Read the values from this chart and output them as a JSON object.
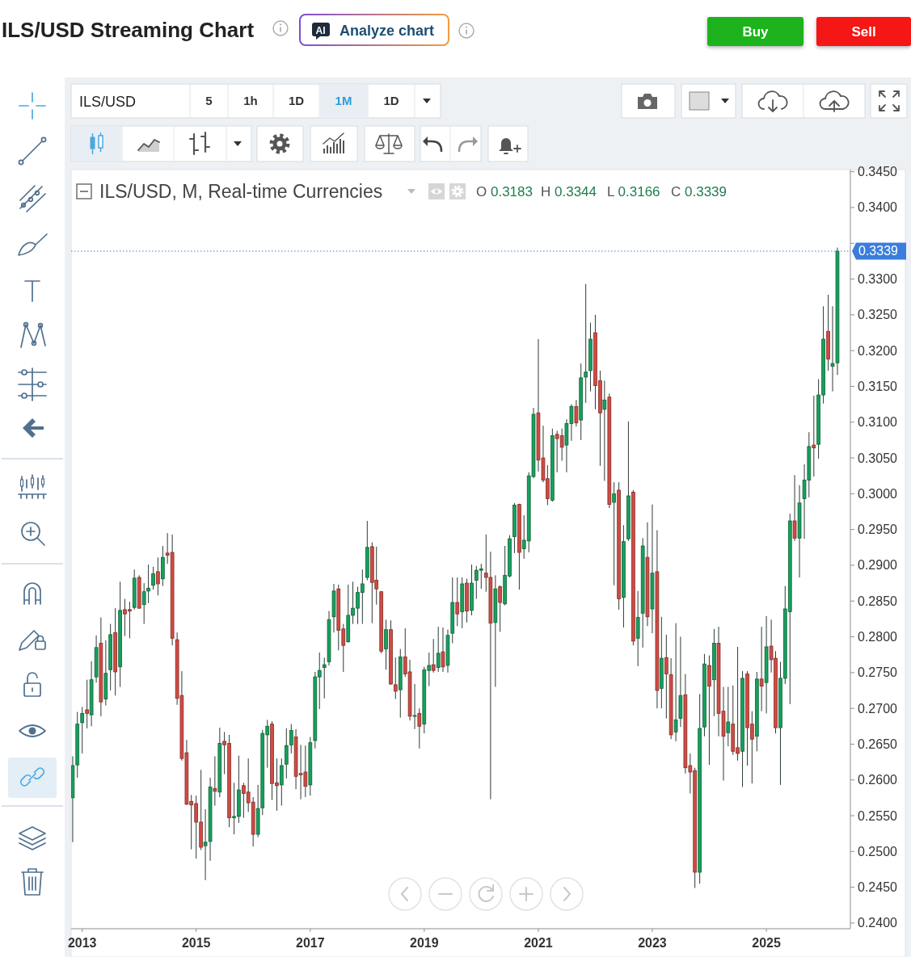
{
  "chart_data": {
    "type": "candlestick",
    "title": "ILS/USD Streaming Chart",
    "subtitle": "ILS/USD, M, Real-time Currencies",
    "x": [
      "2012-11",
      "2012-12",
      "2013-01",
      "2013-02",
      "2013-03",
      "2013-04",
      "2013-05",
      "2013-06",
      "2013-07",
      "2013-08",
      "2013-09",
      "2013-10",
      "2013-11",
      "2013-12",
      "2014-01",
      "2014-02",
      "2014-03",
      "2014-04",
      "2014-05",
      "2014-06",
      "2014-07",
      "2014-08",
      "2014-09",
      "2014-10",
      "2014-11",
      "2014-12",
      "2015-01",
      "2015-02",
      "2015-03",
      "2015-04",
      "2015-05",
      "2015-06",
      "2015-07",
      "2015-08",
      "2015-09",
      "2015-10",
      "2015-11",
      "2015-12",
      "2016-01",
      "2016-02",
      "2016-03",
      "2016-04",
      "2016-05",
      "2016-06",
      "2016-07",
      "2016-08",
      "2016-09",
      "2016-10",
      "2016-11",
      "2016-12",
      "2017-01",
      "2017-02",
      "2017-03",
      "2017-04",
      "2017-05",
      "2017-06",
      "2017-07",
      "2017-08",
      "2017-09",
      "2017-10",
      "2017-11",
      "2017-12",
      "2018-01",
      "2018-02",
      "2018-03",
      "2018-04",
      "2018-05",
      "2018-06",
      "2018-07",
      "2018-08",
      "2018-09",
      "2018-10",
      "2018-11",
      "2018-12",
      "2019-01",
      "2019-02",
      "2019-03",
      "2019-04",
      "2019-05",
      "2019-06",
      "2019-07",
      "2019-08",
      "2019-09",
      "2019-10",
      "2019-11",
      "2019-12",
      "2020-01",
      "2020-02",
      "2020-03",
      "2020-04",
      "2020-05",
      "2020-06",
      "2020-07",
      "2020-08",
      "2020-09",
      "2020-10",
      "2020-11",
      "2020-12",
      "2021-01",
      "2021-02",
      "2021-03",
      "2021-04",
      "2021-05",
      "2021-06",
      "2021-07",
      "2021-08",
      "2021-09",
      "2021-10",
      "2021-11",
      "2021-12",
      "2022-01",
      "2022-02",
      "2022-03",
      "2022-04",
      "2022-05",
      "2022-06",
      "2022-07",
      "2022-08",
      "2022-09",
      "2022-10",
      "2022-11",
      "2022-12",
      "2023-01",
      "2023-02",
      "2023-03",
      "2023-04",
      "2023-05",
      "2023-06",
      "2023-07",
      "2023-08",
      "2023-09",
      "2023-10",
      "2023-11",
      "2023-12",
      "2024-01",
      "2024-02",
      "2024-03",
      "2024-04",
      "2024-05",
      "2024-06",
      "2024-07",
      "2024-08",
      "2024-09",
      "2024-10",
      "2024-11",
      "2024-12",
      "2025-01",
      "2025-02",
      "2025-03",
      "2025-04",
      "2025-05",
      "2025-06",
      "2025-07",
      "2025-08",
      "2025-09",
      "2025-10",
      "2025-11",
      "2025-12",
      "2026-01",
      "2026-02",
      "2026-03",
      "2026-04"
    ],
    "ohlc": [
      [
        0.2575,
        0.2633,
        0.2513,
        0.262
      ],
      [
        0.2621,
        0.2695,
        0.2603,
        0.2678
      ],
      [
        0.268,
        0.2702,
        0.2637,
        0.2693
      ],
      [
        0.2698,
        0.274,
        0.2672,
        0.2693
      ],
      [
        0.2691,
        0.2766,
        0.2675,
        0.274
      ],
      [
        0.2744,
        0.2802,
        0.2736,
        0.2785
      ],
      [
        0.2791,
        0.2827,
        0.2689,
        0.2709
      ],
      [
        0.2713,
        0.2795,
        0.2704,
        0.2749
      ],
      [
        0.2754,
        0.2818,
        0.2725,
        0.2803
      ],
      [
        0.2806,
        0.284,
        0.2718,
        0.2751
      ],
      [
        0.2758,
        0.2877,
        0.273,
        0.2837
      ],
      [
        0.2838,
        0.2853,
        0.2801,
        0.2832
      ],
      [
        0.2838,
        0.2849,
        0.2798,
        0.2836
      ],
      [
        0.2841,
        0.2894,
        0.2838,
        0.2882
      ],
      [
        0.2883,
        0.2886,
        0.2839,
        0.284
      ],
      [
        0.2845,
        0.2875,
        0.2818,
        0.2863
      ],
      [
        0.2864,
        0.2901,
        0.2847,
        0.2868
      ],
      [
        0.2872,
        0.2898,
        0.2866,
        0.2888
      ],
      [
        0.2891,
        0.2911,
        0.2858,
        0.2874
      ],
      [
        0.2881,
        0.2927,
        0.2871,
        0.2911
      ],
      [
        0.2917,
        0.2945,
        0.2902,
        0.2914
      ],
      [
        0.2918,
        0.2943,
        0.2788,
        0.2798
      ],
      [
        0.2796,
        0.2806,
        0.2705,
        0.2714
      ],
      [
        0.2718,
        0.2752,
        0.2627,
        0.263
      ],
      [
        0.2638,
        0.2656,
        0.2565,
        0.2566
      ],
      [
        0.257,
        0.2579,
        0.2503,
        0.2565
      ],
      [
        0.2567,
        0.2578,
        0.249,
        0.2541
      ],
      [
        0.2541,
        0.2614,
        0.2502,
        0.2506
      ],
      [
        0.2508,
        0.2559,
        0.246,
        0.2513
      ],
      [
        0.2514,
        0.2603,
        0.2487,
        0.259
      ],
      [
        0.2588,
        0.2633,
        0.2564,
        0.2584
      ],
      [
        0.2583,
        0.2673,
        0.2576,
        0.2651
      ],
      [
        0.2654,
        0.2667,
        0.2608,
        0.2649
      ],
      [
        0.2651,
        0.2663,
        0.2534,
        0.2547
      ],
      [
        0.2547,
        0.2596,
        0.2524,
        0.2549
      ],
      [
        0.2549,
        0.2634,
        0.254,
        0.2586
      ],
      [
        0.2592,
        0.2596,
        0.2547,
        0.2581
      ],
      [
        0.2583,
        0.263,
        0.2555,
        0.2568
      ],
      [
        0.2569,
        0.2576,
        0.2507,
        0.2524
      ],
      [
        0.2524,
        0.2593,
        0.252,
        0.256
      ],
      [
        0.2561,
        0.267,
        0.2551,
        0.2665
      ],
      [
        0.2663,
        0.2684,
        0.2617,
        0.2675
      ],
      [
        0.2678,
        0.2682,
        0.2572,
        0.2595
      ],
      [
        0.2596,
        0.263,
        0.2557,
        0.2592
      ],
      [
        0.2593,
        0.263,
        0.2564,
        0.262
      ],
      [
        0.2622,
        0.2672,
        0.2602,
        0.2648
      ],
      [
        0.2649,
        0.2678,
        0.2637,
        0.2669
      ],
      [
        0.266,
        0.2671,
        0.2587,
        0.2605
      ],
      [
        0.2609,
        0.2649,
        0.2573,
        0.2607
      ],
      [
        0.2611,
        0.2648,
        0.2576,
        0.2591
      ],
      [
        0.2593,
        0.266,
        0.2578,
        0.2652
      ],
      [
        0.2655,
        0.2751,
        0.2644,
        0.2744
      ],
      [
        0.2744,
        0.2778,
        0.2699,
        0.2753
      ],
      [
        0.2757,
        0.2771,
        0.2714,
        0.2761
      ],
      [
        0.2765,
        0.2836,
        0.276,
        0.2824
      ],
      [
        0.2828,
        0.2874,
        0.2806,
        0.2864
      ],
      [
        0.2867,
        0.2873,
        0.2781,
        0.2809
      ],
      [
        0.2811,
        0.2818,
        0.2751,
        0.2788
      ],
      [
        0.2793,
        0.2873,
        0.2792,
        0.283
      ],
      [
        0.283,
        0.2877,
        0.2818,
        0.284
      ],
      [
        0.284,
        0.287,
        0.2818,
        0.2862
      ],
      [
        0.2862,
        0.2894,
        0.2818,
        0.2874
      ],
      [
        0.2883,
        0.2962,
        0.2879,
        0.2925
      ],
      [
        0.2926,
        0.2932,
        0.2819,
        0.2876
      ],
      [
        0.2879,
        0.2926,
        0.2845,
        0.2867
      ],
      [
        0.2863,
        0.2864,
        0.2777,
        0.278
      ],
      [
        0.2783,
        0.2824,
        0.2754,
        0.281
      ],
      [
        0.281,
        0.2823,
        0.2733,
        0.2734
      ],
      [
        0.2733,
        0.2771,
        0.2713,
        0.2724
      ],
      [
        0.2726,
        0.2783,
        0.2687,
        0.2772
      ],
      [
        0.2772,
        0.2812,
        0.2744,
        0.2748
      ],
      [
        0.2751,
        0.2768,
        0.2683,
        0.2689
      ],
      [
        0.2689,
        0.2734,
        0.2671,
        0.269
      ],
      [
        0.2693,
        0.27,
        0.2644,
        0.2675
      ],
      [
        0.2678,
        0.2758,
        0.2665,
        0.2754
      ],
      [
        0.2753,
        0.2778,
        0.2731,
        0.276
      ],
      [
        0.2761,
        0.2797,
        0.275,
        0.2753
      ],
      [
        0.2757,
        0.2814,
        0.2751,
        0.2777
      ],
      [
        0.2779,
        0.2813,
        0.2751,
        0.2758
      ],
      [
        0.276,
        0.281,
        0.275,
        0.2802
      ],
      [
        0.2805,
        0.2883,
        0.2791,
        0.2848
      ],
      [
        0.2848,
        0.2883,
        0.2815,
        0.2832
      ],
      [
        0.2835,
        0.2883,
        0.2812,
        0.2874
      ],
      [
        0.2875,
        0.2881,
        0.282,
        0.2836
      ],
      [
        0.2837,
        0.2901,
        0.283,
        0.2875
      ],
      [
        0.2879,
        0.2899,
        0.2853,
        0.2893
      ],
      [
        0.2893,
        0.2902,
        0.2867,
        0.2895
      ],
      [
        0.2889,
        0.2943,
        0.2863,
        0.2883
      ],
      [
        0.2883,
        0.2919,
        0.2573,
        0.2819
      ],
      [
        0.282,
        0.2886,
        0.273,
        0.2867
      ],
      [
        0.287,
        0.2872,
        0.2807,
        0.2848
      ],
      [
        0.2846,
        0.2927,
        0.2844,
        0.2886
      ],
      [
        0.2885,
        0.2942,
        0.2883,
        0.2937
      ],
      [
        0.294,
        0.2987,
        0.2917,
        0.2984
      ],
      [
        0.2985,
        0.2986,
        0.2866,
        0.2918
      ],
      [
        0.2923,
        0.297,
        0.2909,
        0.2935
      ],
      [
        0.2934,
        0.303,
        0.2918,
        0.3025
      ],
      [
        0.3024,
        0.312,
        0.3022,
        0.3111
      ],
      [
        0.3113,
        0.3216,
        0.3031,
        0.3047
      ],
      [
        0.305,
        0.3095,
        0.3016,
        0.3019
      ],
      [
        0.3021,
        0.304,
        0.2984,
        0.2993
      ],
      [
        0.2991,
        0.3091,
        0.2989,
        0.3081
      ],
      [
        0.3083,
        0.3088,
        0.303,
        0.3077
      ],
      [
        0.3081,
        0.3091,
        0.3046,
        0.3065
      ],
      [
        0.3068,
        0.3104,
        0.303,
        0.3098
      ],
      [
        0.3098,
        0.3125,
        0.3074,
        0.3122
      ],
      [
        0.3122,
        0.3131,
        0.3094,
        0.3099
      ],
      [
        0.3103,
        0.3182,
        0.3075,
        0.3162
      ],
      [
        0.3163,
        0.3293,
        0.3127,
        0.317
      ],
      [
        0.3172,
        0.3239,
        0.3143,
        0.3216
      ],
      [
        0.3225,
        0.325,
        0.3118,
        0.3151
      ],
      [
        0.3158,
        0.3172,
        0.3039,
        0.3113
      ],
      [
        0.3118,
        0.3158,
        0.3018,
        0.3131
      ],
      [
        0.3135,
        0.314,
        0.298,
        0.2985
      ],
      [
        0.2988,
        0.3016,
        0.2872,
        0.3
      ],
      [
        0.3005,
        0.3016,
        0.2838,
        0.2853
      ],
      [
        0.2855,
        0.2956,
        0.2813,
        0.2933
      ],
      [
        0.2937,
        0.3101,
        0.2934,
        0.2997
      ],
      [
        0.3002,
        0.3005,
        0.2788,
        0.2794
      ],
      [
        0.2798,
        0.2864,
        0.2759,
        0.2827
      ],
      [
        0.2833,
        0.2938,
        0.2785,
        0.2927
      ],
      [
        0.2911,
        0.296,
        0.2815,
        0.2828
      ],
      [
        0.2839,
        0.2985,
        0.2805,
        0.2889
      ],
      [
        0.2891,
        0.2949,
        0.27,
        0.2725
      ],
      [
        0.2728,
        0.2828,
        0.27,
        0.277
      ],
      [
        0.2771,
        0.2803,
        0.2686,
        0.2748
      ],
      [
        0.2747,
        0.277,
        0.2657,
        0.2663
      ],
      [
        0.2667,
        0.2819,
        0.2654,
        0.2684
      ],
      [
        0.2686,
        0.28,
        0.2674,
        0.2718
      ],
      [
        0.2719,
        0.2748,
        0.2609,
        0.2617
      ],
      [
        0.262,
        0.2637,
        0.2581,
        0.2611
      ],
      [
        0.2613,
        0.2617,
        0.2449,
        0.2471
      ],
      [
        0.2471,
        0.272,
        0.2455,
        0.2672
      ],
      [
        0.2674,
        0.2776,
        0.2661,
        0.2762
      ],
      [
        0.276,
        0.2774,
        0.2621,
        0.2731
      ],
      [
        0.274,
        0.2811,
        0.2689,
        0.2791
      ],
      [
        0.2791,
        0.2814,
        0.2661,
        0.2693
      ],
      [
        0.2696,
        0.273,
        0.2599,
        0.2661
      ],
      [
        0.2666,
        0.273,
        0.2647,
        0.2681
      ],
      [
        0.2678,
        0.2732,
        0.2635,
        0.264
      ],
      [
        0.2645,
        0.2786,
        0.2627,
        0.2637
      ],
      [
        0.264,
        0.2752,
        0.259,
        0.2742
      ],
      [
        0.2748,
        0.2752,
        0.262,
        0.2673
      ],
      [
        0.2678,
        0.2696,
        0.2595,
        0.2657
      ],
      [
        0.2661,
        0.2751,
        0.264,
        0.2741
      ],
      [
        0.2741,
        0.2814,
        0.2696,
        0.2731
      ],
      [
        0.2736,
        0.2829,
        0.2693,
        0.2786
      ],
      [
        0.2787,
        0.2824,
        0.275,
        0.2768
      ],
      [
        0.277,
        0.278,
        0.2665,
        0.2673
      ],
      [
        0.2673,
        0.2765,
        0.2593,
        0.2742
      ],
      [
        0.2742,
        0.2871,
        0.2734,
        0.2839
      ],
      [
        0.2835,
        0.2972,
        0.2706,
        0.2962
      ],
      [
        0.2962,
        0.3026,
        0.2934,
        0.2938
      ],
      [
        0.2938,
        0.3012,
        0.2883,
        0.2987
      ],
      [
        0.2993,
        0.3041,
        0.2937,
        0.3019
      ],
      [
        0.3019,
        0.3086,
        0.2995,
        0.3066
      ],
      [
        0.3068,
        0.3137,
        0.3024,
        0.3064
      ],
      [
        0.3069,
        0.316,
        0.3049,
        0.3138
      ],
      [
        0.3138,
        0.3262,
        0.3126,
        0.3216
      ],
      [
        0.3227,
        0.3278,
        0.3172,
        0.3188
      ],
      [
        0.3178,
        0.3262,
        0.3143,
        0.3182
      ],
      [
        0.3183,
        0.3344,
        0.3166,
        0.3339
      ]
    ],
    "colors": [
      "#17a05d",
      "#17a05d",
      "#17a05d",
      "#d14b43",
      "#17a05d",
      "#17a05d",
      "#d14b43",
      "#17a05d",
      "#17a05d",
      "#d14b43",
      "#17a05d",
      "#d14b43",
      "#d14b43",
      "#17a05d",
      "#d14b43",
      "#17a05d",
      "#17a05d",
      "#17a05d",
      "#d14b43",
      "#17a05d",
      "#d14b43",
      "#d14b43",
      "#d14b43",
      "#d14b43",
      "#d14b43",
      "#d14b43",
      "#d14b43",
      "#d14b43",
      "#17a05d",
      "#17a05d",
      "#d14b43",
      "#17a05d",
      "#d14b43",
      "#d14b43",
      "#17a05d",
      "#17a05d",
      "#d14b43",
      "#d14b43",
      "#d14b43",
      "#17a05d",
      "#17a05d",
      "#17a05d",
      "#d14b43",
      "#d14b43",
      "#17a05d",
      "#17a05d",
      "#17a05d",
      "#d14b43",
      "#d14b43",
      "#d14b43",
      "#17a05d",
      "#17a05d",
      "#17a05d",
      "#17a05d",
      "#17a05d",
      "#17a05d",
      "#d14b43",
      "#d14b43",
      "#17a05d",
      "#17a05d",
      "#17a05d",
      "#17a05d",
      "#17a05d",
      "#d14b43",
      "#d14b43",
      "#d14b43",
      "#17a05d",
      "#d14b43",
      "#d14b43",
      "#17a05d",
      "#d14b43",
      "#d14b43",
      "#17a05d",
      "#d14b43",
      "#17a05d",
      "#17a05d",
      "#d14b43",
      "#17a05d",
      "#d14b43",
      "#17a05d",
      "#17a05d",
      "#d14b43",
      "#17a05d",
      "#d14b43",
      "#17a05d",
      "#17a05d",
      "#17a05d",
      "#d14b43",
      "#d14b43",
      "#17a05d",
      "#d14b43",
      "#17a05d",
      "#17a05d",
      "#17a05d",
      "#d14b43",
      "#17a05d",
      "#17a05d",
      "#17a05d",
      "#d14b43",
      "#d14b43",
      "#d14b43",
      "#17a05d",
      "#d14b43",
      "#d14b43",
      "#17a05d",
      "#17a05d",
      "#d14b43",
      "#17a05d",
      "#17a05d",
      "#17a05d",
      "#d14b43",
      "#d14b43",
      "#17a05d",
      "#d14b43",
      "#17a05d",
      "#d14b43",
      "#17a05d",
      "#17a05d",
      "#d14b43",
      "#17a05d",
      "#17a05d",
      "#d14b43",
      "#17a05d",
      "#d14b43",
      "#17a05d",
      "#d14b43",
      "#d14b43",
      "#17a05d",
      "#17a05d",
      "#d14b43",
      "#d14b43",
      "#d14b43",
      "#17a05d",
      "#17a05d",
      "#d14b43",
      "#17a05d",
      "#d14b43",
      "#d14b43",
      "#17a05d",
      "#d14b43",
      "#d14b43",
      "#17a05d",
      "#d14b43",
      "#d14b43",
      "#17a05d",
      "#d14b43",
      "#17a05d",
      "#d14b43",
      "#d14b43",
      "#17a05d",
      "#17a05d",
      "#17a05d",
      "#d14b43",
      "#17a05d",
      "#17a05d",
      "#17a05d",
      "#d14b43",
      "#17a05d",
      "#17a05d",
      "#d14b43",
      "#17a05d",
      "#17a05d"
    ],
    "xlim": [
      "2012-10-22",
      "2026-06-23"
    ],
    "xticks": [
      "2013",
      "2015",
      "2017",
      "2019",
      "2021",
      "2023",
      "2025"
    ],
    "ylim": [
      0.2392,
      0.3453
    ],
    "yticks": [
      {
        "value": 0.24,
        "label": "0.2400"
      },
      {
        "value": 0.245,
        "label": "0.2450"
      },
      {
        "value": 0.25,
        "label": "0.2500"
      },
      {
        "value": 0.255,
        "label": "0.2550"
      },
      {
        "value": 0.26,
        "label": "0.2600"
      },
      {
        "value": 0.265,
        "label": "0.2650"
      },
      {
        "value": 0.27,
        "label": "0.2700"
      },
      {
        "value": 0.275,
        "label": "0.2750"
      },
      {
        "value": 0.28,
        "label": "0.2800"
      },
      {
        "value": 0.285,
        "label": "0.2850"
      },
      {
        "value": 0.29,
        "label": "0.2900"
      },
      {
        "value": 0.295,
        "label": "0.2950"
      },
      {
        "value": 0.3,
        "label": "0.3000"
      },
      {
        "value": 0.305,
        "label": "0.3050"
      },
      {
        "value": 0.31,
        "label": "0.3100"
      },
      {
        "value": 0.315,
        "label": "0.3150"
      },
      {
        "value": 0.32,
        "label": "0.3200"
      },
      {
        "value": 0.325,
        "label": "0.3250"
      },
      {
        "value": 0.33,
        "label": "0.3300"
      },
      {
        "value": 0.335,
        "label": null
      },
      {
        "value": 0.34,
        "label": "0.3400"
      },
      {
        "value": 0.345,
        "label": "0.3450"
      }
    ],
    "ref_lines": [
      {
        "axis": "y",
        "value": 0.3339,
        "label": "0.3339",
        "color": "#3a7ddb",
        "line_style": "dotted"
      }
    ],
    "annotations": [
      "Analyze chart",
      "AI",
      "Buy",
      "Sell",
      "ILS/USD",
      "5",
      "1h",
      "1D",
      "1M",
      "1D",
      "O 0.3183",
      "H 0.3344",
      "L 0.3166",
      "C 0.3339"
    ]
  }
}
